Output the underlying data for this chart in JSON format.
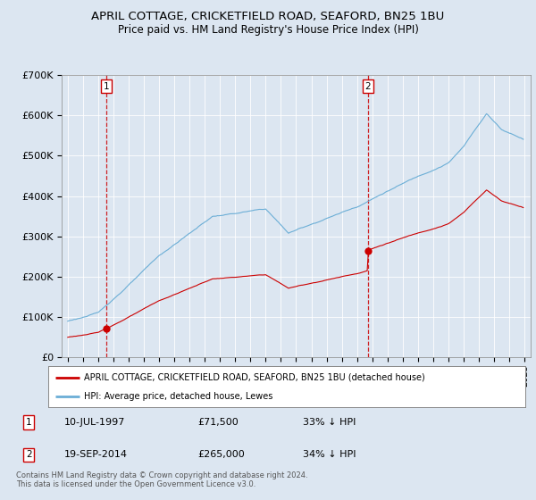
{
  "title_line1": "APRIL COTTAGE, CRICKETFIELD ROAD, SEAFORD, BN25 1BU",
  "title_line2": "Price paid vs. HM Land Registry's House Price Index (HPI)",
  "legend_label1": "APRIL COTTAGE, CRICKETFIELD ROAD, SEAFORD, BN25 1BU (detached house)",
  "legend_label2": "HPI: Average price, detached house, Lewes",
  "purchase1_label": "1",
  "purchase1_date": "10-JUL-1997",
  "purchase1_price": "£71,500",
  "purchase1_hpi": "33% ↓ HPI",
  "purchase1_year": 1997.55,
  "purchase1_value": 71500,
  "purchase2_label": "2",
  "purchase2_date": "19-SEP-2014",
  "purchase2_price": "£265,000",
  "purchase2_hpi": "34% ↓ HPI",
  "purchase2_year": 2014.72,
  "purchase2_value": 265000,
  "hpi_color": "#6baed6",
  "price_color": "#cc0000",
  "background_color": "#dce6f1",
  "plot_bg_color": "#dce6f1",
  "footer_text": "Contains HM Land Registry data © Crown copyright and database right 2024.\nThis data is licensed under the Open Government Licence v3.0.",
  "ylim": [
    0,
    700000
  ],
  "yticks": [
    0,
    100000,
    200000,
    300000,
    400000,
    500000,
    600000,
    700000
  ],
  "title_fontsize1": 10,
  "title_fontsize2": 9
}
